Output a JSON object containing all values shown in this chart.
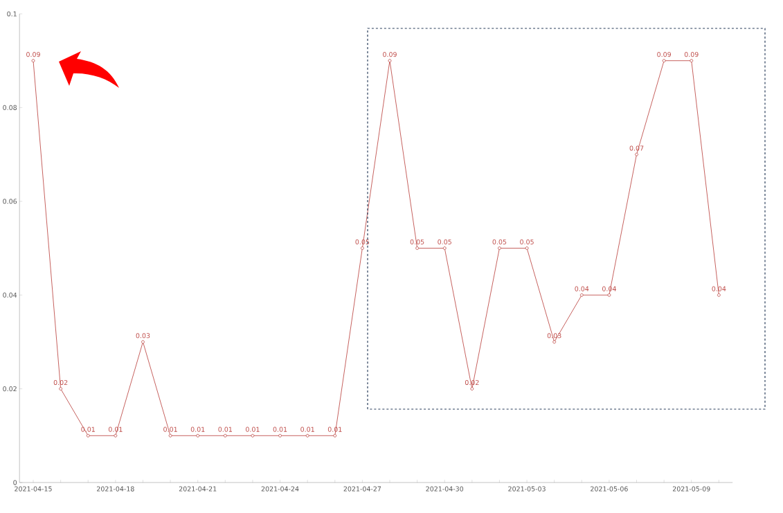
{
  "chart_data": {
    "type": "line",
    "categories": [
      "2021-04-15",
      null,
      null,
      "2021-04-18",
      null,
      null,
      "2021-04-21",
      null,
      null,
      "2021-04-24",
      null,
      null,
      "2021-04-27",
      null,
      null,
      "2021-04-30",
      null,
      null,
      "2021-05-03",
      null,
      null,
      "2021-05-06",
      null,
      null,
      "2021-05-09",
      null
    ],
    "values": [
      0.09,
      0.02,
      0.01,
      0.01,
      0.03,
      0.01,
      0.01,
      0.01,
      0.01,
      0.01,
      0.01,
      0.01,
      0.05,
      0.09,
      0.05,
      0.05,
      0.02,
      0.05,
      0.05,
      0.03,
      0.04,
      0.04,
      0.07,
      0.09,
      0.09,
      0.04
    ],
    "color": "#c0504d",
    "ylim": [
      0,
      0.1
    ],
    "yticks": [
      0,
      0.02,
      0.04,
      0.06,
      0.08,
      0.1
    ],
    "marker": "circle",
    "line_style": "solid",
    "data_labels": true,
    "grid": false
  }
}
